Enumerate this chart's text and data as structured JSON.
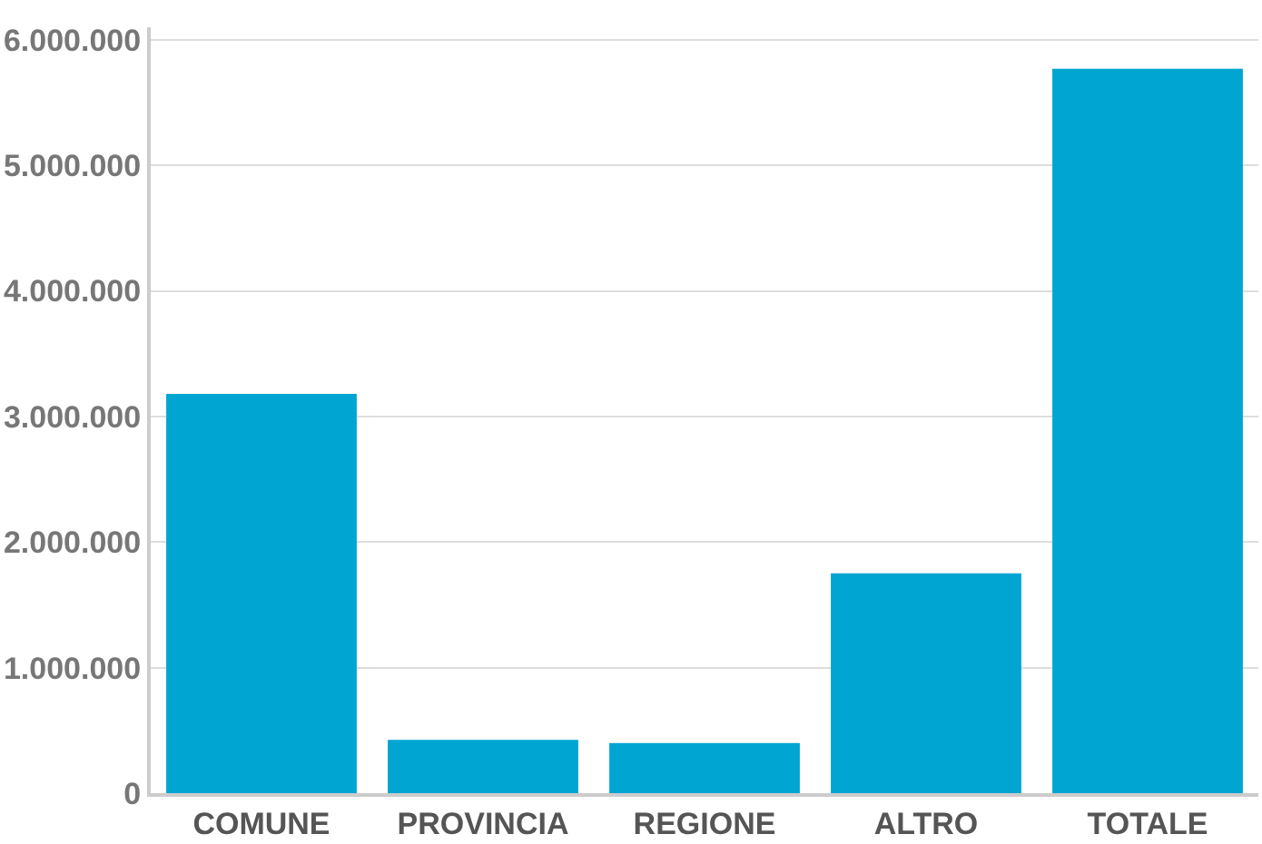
{
  "chart_data": {
    "type": "bar",
    "categories": [
      "COMUNE",
      "PROVINCIA",
      "REGIONE",
      "ALTRO",
      "TOTALE"
    ],
    "values": [
      3180000,
      425000,
      400000,
      1750000,
      5770000
    ],
    "color": "#00a5d2",
    "ylim": [
      0,
      6100000
    ],
    "yticks": [
      {
        "value": 0,
        "label": "0"
      },
      {
        "value": 1000000,
        "label": "1.000.000"
      },
      {
        "value": 2000000,
        "label": "2.000.000"
      },
      {
        "value": 3000000,
        "label": "3.000.000"
      },
      {
        "value": 4000000,
        "label": "4.000.000"
      },
      {
        "value": 5000000,
        "label": "5.000.000"
      },
      {
        "value": 6000000,
        "label": "6.000.000"
      }
    ],
    "grid": "y"
  }
}
